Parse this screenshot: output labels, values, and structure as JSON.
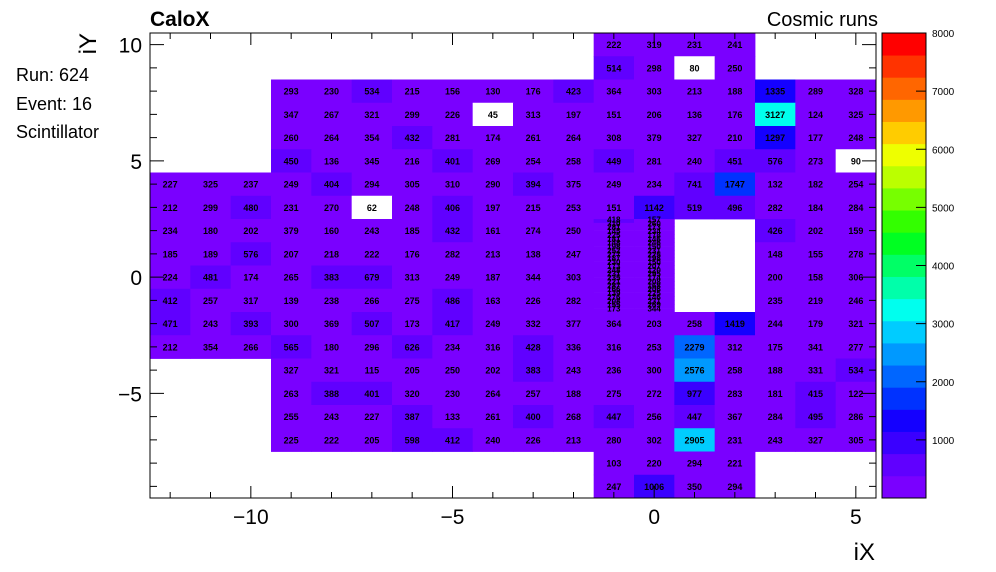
{
  "header": {
    "experiment": "CaloX",
    "run_type": "Cosmic runs"
  },
  "info": {
    "run": "Run: 624",
    "event": "Event: 16",
    "detector": "Scintillator"
  },
  "chart_data": {
    "type": "heatmap",
    "xlabel": "iX",
    "ylabel": "iY",
    "xlim": [
      -12.5,
      5.5
    ],
    "ylim": [
      -9.5,
      10.5
    ],
    "x_ticks": [
      -10,
      -5,
      0,
      5
    ],
    "y_ticks": [
      -5,
      0,
      5,
      10
    ],
    "x_tick_labels": [
      "−10",
      "−5",
      "0",
      "5"
    ],
    "y_tick_labels": [
      "−5",
      "0",
      "5",
      "10"
    ],
    "z_range": [
      0,
      8000
    ],
    "colorbar_ticks": [
      1000,
      2000,
      3000,
      4000,
      5000,
      6000,
      7000,
      8000
    ],
    "colorbar_tick_labels": [
      "1000",
      "2000",
      "3000",
      "4000",
      "5000",
      "6000",
      "7000",
      "8000"
    ],
    "palette": [
      "#7a00ff",
      "#6000ff",
      "#3a00ff",
      "#1400ff",
      "#0032ff",
      "#0066ff",
      "#0099ff",
      "#00ccff",
      "#00ffee",
      "#00ffaa",
      "#00ff66",
      "#00ff22",
      "#33ff00",
      "#77ff00",
      "#bbff00",
      "#eeff00",
      "#ffcc00",
      "#ff9900",
      "#ff6600",
      "#ff3300",
      "#ff0000"
    ],
    "column_x_start": -12,
    "rows": [
      {
        "iy": 10,
        "values": [
          null,
          null,
          null,
          null,
          null,
          null,
          null,
          null,
          null,
          null,
          null,
          222,
          319,
          231,
          241,
          null,
          null,
          null
        ]
      },
      {
        "iy": 9,
        "values": [
          null,
          null,
          null,
          null,
          null,
          null,
          null,
          null,
          null,
          null,
          null,
          514,
          298,
          80,
          250,
          null,
          null,
          null
        ]
      },
      {
        "iy": 8,
        "values": [
          null,
          null,
          null,
          293,
          230,
          534,
          215,
          156,
          130,
          176,
          423,
          364,
          303,
          213,
          188,
          1335,
          289,
          328
        ]
      },
      {
        "iy": 7,
        "values": [
          null,
          null,
          null,
          347,
          267,
          321,
          299,
          226,
          45,
          313,
          197,
          151,
          206,
          136,
          176,
          3127,
          124,
          325
        ]
      },
      {
        "iy": 6,
        "values": [
          null,
          null,
          null,
          260,
          264,
          354,
          432,
          281,
          174,
          261,
          264,
          308,
          379,
          327,
          210,
          1297,
          177,
          248
        ]
      },
      {
        "iy": 5,
        "values": [
          null,
          null,
          null,
          450,
          136,
          345,
          216,
          401,
          269,
          254,
          258,
          449,
          281,
          240,
          451,
          576,
          273,
          90
        ]
      },
      {
        "iy": 4,
        "values": [
          227,
          325,
          237,
          249,
          404,
          294,
          305,
          310,
          290,
          394,
          375,
          249,
          234,
          741,
          1747,
          132,
          182,
          254
        ]
      },
      {
        "iy": 3,
        "values": [
          212,
          299,
          480,
          231,
          270,
          62,
          248,
          406,
          197,
          215,
          253,
          151,
          1142,
          519,
          496,
          282,
          184,
          284
        ]
      },
      {
        "iy": 2,
        "values": [
          234,
          180,
          202,
          379,
          160,
          243,
          185,
          432,
          161,
          274,
          250,
          null,
          null,
          null,
          null,
          426,
          202,
          159
        ]
      },
      {
        "iy": 1,
        "values": [
          185,
          189,
          576,
          207,
          218,
          222,
          176,
          282,
          213,
          138,
          247,
          null,
          null,
          null,
          null,
          148,
          155,
          278
        ]
      },
      {
        "iy": 0,
        "values": [
          224,
          481,
          174,
          265,
          383,
          679,
          313,
          249,
          187,
          344,
          303,
          null,
          null,
          null,
          null,
          200,
          158,
          306
        ]
      },
      {
        "iy": -1,
        "values": [
          412,
          257,
          317,
          139,
          238,
          266,
          275,
          486,
          163,
          226,
          282,
          null,
          null,
          null,
          null,
          235,
          219,
          246
        ]
      },
      {
        "iy": -2,
        "values": [
          471,
          243,
          393,
          300,
          369,
          507,
          173,
          417,
          249,
          332,
          377,
          364,
          203,
          258,
          1419,
          244,
          179,
          321
        ]
      },
      {
        "iy": -3,
        "values": [
          212,
          354,
          266,
          565,
          180,
          296,
          626,
          234,
          316,
          428,
          336,
          316,
          253,
          2279,
          312,
          175,
          341,
          277
        ]
      },
      {
        "iy": -4,
        "values": [
          null,
          null,
          null,
          327,
          321,
          115,
          205,
          250,
          202,
          383,
          243,
          236,
          300,
          2576,
          258,
          188,
          331,
          534
        ]
      },
      {
        "iy": -5,
        "values": [
          null,
          null,
          null,
          263,
          388,
          401,
          320,
          230,
          264,
          257,
          188,
          275,
          272,
          977,
          283,
          181,
          415,
          122
        ]
      },
      {
        "iy": -6,
        "values": [
          null,
          null,
          null,
          255,
          243,
          227,
          387,
          133,
          261,
          400,
          268,
          447,
          256,
          447,
          367,
          284,
          495,
          286
        ]
      },
      {
        "iy": -7,
        "values": [
          null,
          null,
          null,
          225,
          222,
          205,
          598,
          412,
          240,
          226,
          213,
          280,
          302,
          2905,
          231,
          243,
          327,
          305
        ]
      },
      {
        "iy": -8,
        "values": [
          null,
          null,
          null,
          null,
          null,
          null,
          null,
          null,
          null,
          null,
          null,
          103,
          220,
          294,
          221,
          null,
          null,
          null
        ]
      },
      {
        "iy": -9,
        "values": [
          null,
          null,
          null,
          null,
          null,
          null,
          null,
          null,
          null,
          null,
          null,
          247,
          1006,
          350,
          294,
          null,
          null,
          null
        ]
      }
    ],
    "fine_cells": {
      "x_range": [
        -1.5,
        0.5
      ],
      "y_range": [
        -1.5,
        2.5
      ],
      "row_count": 24,
      "rows": [
        [
          418,
          157
        ],
        [
          310,
          260
        ],
        [
          281,
          173
        ],
        [
          145,
          234
        ],
        [
          225,
          178
        ],
        [
          181,
          146
        ],
        [
          148,
          246
        ],
        [
          198,
          150
        ],
        [
          252,
          231
        ],
        [
          277,
          225
        ],
        [
          187,
          198
        ],
        [
          230,
          150
        ],
        [
          173,
          207
        ],
        [
          248,
          120
        ],
        [
          231,
          295
        ],
        [
          235,
          174
        ],
        [
          221,
          208
        ],
        [
          287,
          168
        ],
        [
          166,
          206
        ],
        [
          139,
          225
        ],
        [
          276,
          146
        ],
        [
          208,
          231
        ],
        [
          155,
          269
        ],
        [
          173,
          344
        ]
      ]
    }
  }
}
